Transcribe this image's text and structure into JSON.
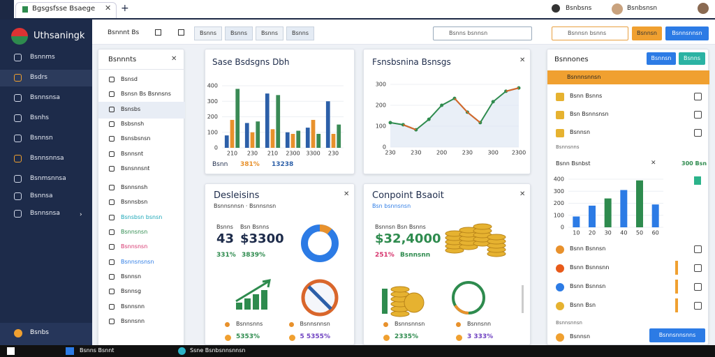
{
  "browser": {
    "tab": "Bgsgsfsse Bsaege",
    "user1": "Bsnbsns",
    "user2": "Bsnbsnsn"
  },
  "sidebar": {
    "brand": "Uthsaningk",
    "items": [
      "Bsnnms",
      "Bsdrs",
      "Bsnnsnsa",
      "Bsnhs",
      "Bsnnsn",
      "Bsnnsnnsa",
      "Bsnmsnnsa",
      "Bsnnsa",
      "Bsnnsnsa"
    ],
    "footer": "Bsnbs"
  },
  "toolbar": {
    "title": "Bsnnnt Bs",
    "tabs": [
      "Bsnns",
      "Bsnns",
      "Bsnns",
      "Bsnns"
    ],
    "search": "Bsnns bsnnsn",
    "search2": "Bsnnsn bsnns",
    "button1": "Bsnnsn",
    "button2": "Bsnnsnnsn"
  },
  "list_panel": {
    "title": "Bsnnnts",
    "items": [
      "Bsnsd",
      "Bsnsn Bs Bsnnsns",
      "Bsnsbs",
      "Bsbsnsh",
      "Bsnsbsnsn",
      "Bsnnsnt",
      "Bsnsnnsnt",
      "Bsnnsnsh",
      "Bsnnsbsn",
      "Bsnsbsn bsnsn",
      "Bsnnsnsn",
      "Bsnnsnsn",
      "Bsnnsnsnsn",
      "Bsnnsn",
      "Bsnnsg",
      "Bsnnsnn",
      "Bsnnsnn"
    ]
  },
  "chart_data": [
    {
      "type": "bar",
      "title": "Sase Bsdsgns Dbh",
      "categories": [
        "210",
        "230",
        "210",
        "2300",
        "3300",
        "230"
      ],
      "series": [
        {
          "color": "#2c5fa8",
          "values": [
            80,
            160,
            350,
            100,
            130,
            300
          ]
        },
        {
          "color": "#e8912c",
          "values": [
            180,
            100,
            120,
            90,
            180,
            90
          ]
        },
        {
          "color": "#3a8a55",
          "values": [
            380,
            170,
            340,
            110,
            90,
            150
          ]
        }
      ],
      "ylim": [
        0,
        400
      ],
      "yticks": [
        0,
        100,
        200,
        300,
        400
      ]
    },
    {
      "type": "line",
      "title": "Fsnsbsnina Bsnsgs",
      "categories": [
        "230",
        null,
        "230",
        null,
        "200",
        null,
        "230",
        null,
        "300",
        null,
        "2300"
      ],
      "series": [
        {
          "color": "#2e8b4e",
          "values": [
            117,
            107,
            83,
            133,
            200,
            233,
            167,
            117,
            217,
            267,
            283
          ]
        },
        {
          "color": "#d9662b",
          "values": [
            null,
            107,
            83,
            null,
            null,
            233,
            167,
            117,
            null,
            267,
            283
          ]
        }
      ],
      "ylim": [
        0,
        300
      ],
      "yticks": [
        0,
        100,
        200,
        300
      ],
      "area": true
    },
    {
      "type": "bar",
      "title": "Bsnn Bsnbst",
      "categories": [
        "10",
        "20",
        "30",
        "40",
        "50",
        "60"
      ],
      "values": [
        90,
        180,
        240,
        310,
        390,
        190
      ],
      "colors": [
        "#2c7be5",
        "#2c7be5",
        "#2e8b4e",
        "#2c7be5",
        "#2e8b4e",
        "#2c7be5"
      ],
      "ylim": [
        0,
        400
      ],
      "yticks": [
        0,
        100,
        200,
        300,
        400
      ]
    }
  ],
  "cards": [
    {
      "footer": [
        "Bsnn",
        "381%",
        "13238"
      ]
    }
  ],
  "stat_cards": [
    {
      "title": "Desleisins",
      "subtitle": "Bsnnsnnsn · Bsnnsnsn",
      "labels": [
        "Bsnns",
        "Bsn Bsnns"
      ],
      "bigs": [
        "43",
        "$3300"
      ],
      "subs": [
        "331%",
        "3839%"
      ],
      "bottom": [
        {
          "label": "Bsnnsnns",
          "value": "5353%"
        },
        {
          "label": "Bsnnsnnsn",
          "value": "5 5355%"
        }
      ]
    },
    {
      "title": "Conpoint Bsaoit",
      "subtitle": "Bsn bsnnsnsn",
      "labels": [
        "Bsnnsn Bsn Bsnns"
      ],
      "bigs": [
        "$32,4000"
      ],
      "subs": [
        "251%",
        "Bsnnsnn"
      ],
      "bottom": [
        {
          "label": "Bsnnsnnsn",
          "value": "2335%"
        },
        {
          "label": "Bsnnsnn",
          "value": "3 333%"
        }
      ]
    }
  ],
  "right_panel": {
    "title": "Bsnnones",
    "buttons": [
      "Bsnnsn",
      "Bsnns"
    ],
    "banner": "Bsnnnsnnsn",
    "rows": [
      "Bsnn Bsnns",
      "Bsn Bsnnsnsn",
      "Bsnnsn"
    ],
    "note": "Bsnnsnns",
    "chart_value": "300 Bsn",
    "rows2": [
      "Bsnn Bsnnsn",
      "Bsnn Bsnnsnn",
      "Bsnn Bsnnsn",
      "Bsnn Bsn"
    ],
    "note2": "Bsnnsnnsn",
    "last": "Bsnnsn",
    "action": "Bsnnsnnsnns"
  },
  "taskbar": {
    "items": [
      "Bsnns Bsnnt",
      "Ssne Bsnbsnnsnnsn"
    ]
  }
}
